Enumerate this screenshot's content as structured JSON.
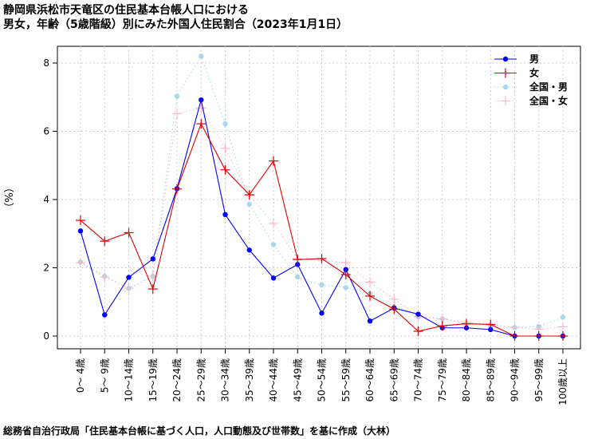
{
  "chart_data": {
    "type": "line",
    "title": "静岡県浜松市天竜区の住民基本台帳人口における",
    "subtitle": "男女，年齢（5歳階級）別にみた外国人住民割合（2023年1月1日）",
    "ylabel": "（%）",
    "ylim": [
      0,
      8
    ],
    "yticks": [
      0,
      2,
      4,
      6,
      8
    ],
    "grid": true,
    "legend_position": "top-right",
    "categories": [
      "0～ 4歳",
      "5～ 9歳",
      "10～14歳",
      "15～19歳",
      "20～24歳",
      "25～29歳",
      "30～34歳",
      "35～39歳",
      "40～44歳",
      "45～49歳",
      "50～54歳",
      "55～59歳",
      "60～64歳",
      "65～69歳",
      "70～74歳",
      "75～79歳",
      "80～84歳",
      "85～89歳",
      "90～94歳",
      "95～99歳",
      "100歳以上"
    ],
    "series": [
      {
        "name": "男",
        "color": "#0000ff",
        "style": "solid",
        "marker": "dot",
        "values": [
          3.08,
          0.62,
          1.72,
          2.26,
          4.32,
          6.92,
          3.56,
          2.52,
          1.7,
          2.1,
          0.67,
          1.95,
          0.44,
          0.82,
          0.64,
          0.24,
          0.24,
          0.19,
          0.0,
          0.0,
          0.0
        ]
      },
      {
        "name": "女",
        "color": "#dd0000",
        "style": "solid",
        "marker": "plus",
        "values": [
          3.39,
          2.78,
          3.03,
          1.38,
          4.31,
          6.22,
          4.87,
          4.14,
          5.13,
          2.24,
          2.27,
          1.8,
          1.17,
          0.79,
          0.14,
          0.3,
          0.36,
          0.34,
          0.0,
          0.0,
          0.0
        ]
      },
      {
        "name": "全国・男",
        "color": "#a8d8e8",
        "style": "dotted",
        "marker": "dot",
        "values": [
          2.17,
          1.75,
          1.4,
          1.75,
          7.03,
          8.2,
          6.22,
          3.86,
          2.68,
          1.73,
          1.5,
          1.42,
          1.25,
          0.85,
          0.57,
          0.5,
          0.37,
          0.32,
          0.25,
          0.28,
          0.55
        ]
      },
      {
        "name": "全国・女",
        "color": "#ffb6c8",
        "style": "dotted",
        "marker": "plus",
        "values": [
          2.15,
          1.73,
          1.4,
          1.75,
          6.52,
          6.68,
          5.5,
          4.12,
          3.3,
          2.27,
          2.22,
          2.15,
          1.58,
          1.08,
          0.57,
          0.5,
          0.4,
          0.33,
          0.25,
          0.2,
          0.27
        ]
      }
    ]
  },
  "footer": "総務省自治行政局「住民基本台帳に基づく人口，人口動態及び世帯数」を基に作成（大林）"
}
